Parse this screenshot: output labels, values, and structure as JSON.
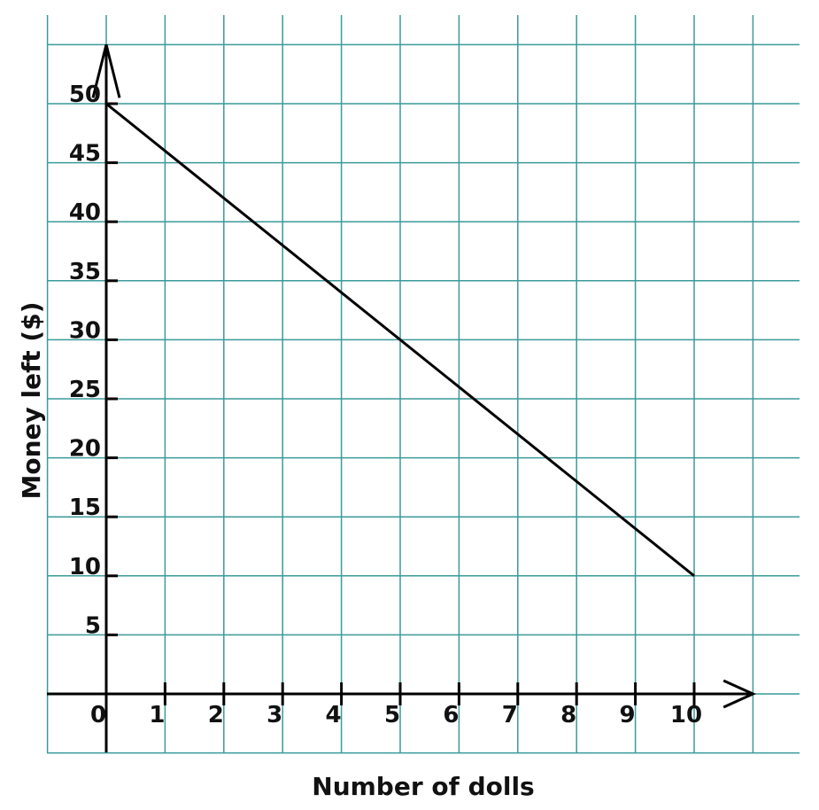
{
  "chart_data": {
    "type": "line",
    "xlabel": "Number of dolls",
    "ylabel": "Money left ($)",
    "x_ticks": [
      0,
      1,
      2,
      3,
      4,
      5,
      6,
      7,
      8,
      9,
      10
    ],
    "y_ticks": [
      5,
      10,
      15,
      20,
      25,
      30,
      35,
      40,
      45,
      50
    ],
    "xlim": [
      -1,
      11
    ],
    "ylim": [
      -5,
      55
    ],
    "grid": true,
    "series": [
      {
        "x": [
          0,
          10
        ],
        "y": [
          50,
          10
        ]
      }
    ],
    "colors": {
      "grid": "#3a9a9a",
      "axis": "#000000",
      "line": "#000000"
    }
  }
}
